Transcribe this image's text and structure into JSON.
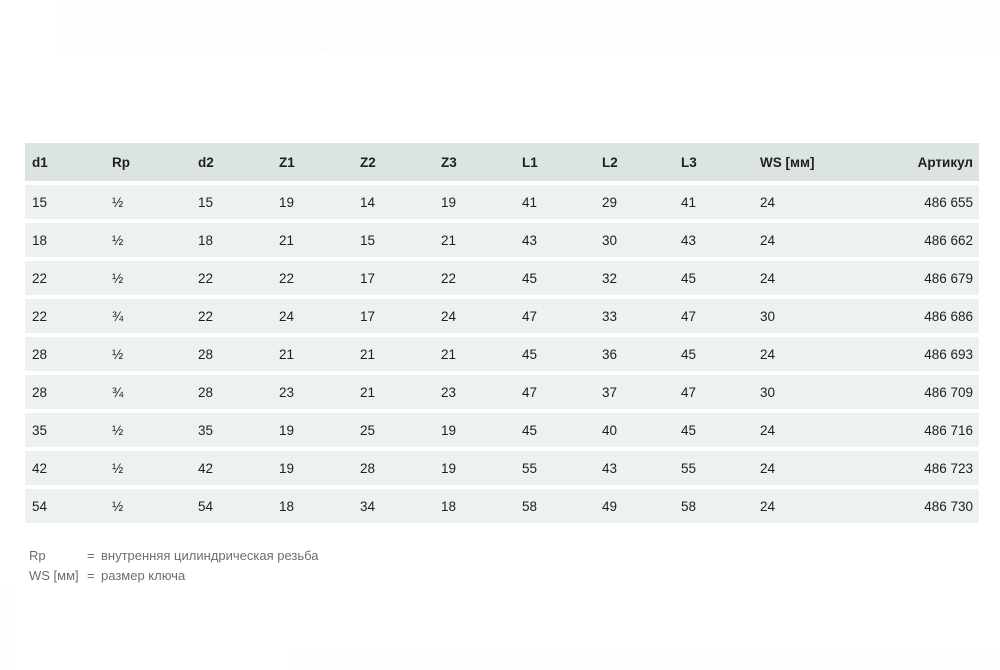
{
  "colors": {
    "page_bg": "#ffffff",
    "header_bg": "#dce4e2",
    "row_bg": "#edf1f0",
    "row_gap": "#ffffff",
    "table_text": "#1f1f1f",
    "footnote_text": "#6e6e6e"
  },
  "table": {
    "columns": [
      "d1",
      "Rp",
      "d2",
      "Z1",
      "Z2",
      "Z3",
      "L1",
      "L2",
      "L3",
      "WS [мм]",
      "Артикул"
    ],
    "rows": [
      [
        "15",
        "½",
        "15",
        "19",
        "14",
        "19",
        "41",
        "29",
        "41",
        "24",
        "486 655"
      ],
      [
        "18",
        "½",
        "18",
        "21",
        "15",
        "21",
        "43",
        "30",
        "43",
        "24",
        "486 662"
      ],
      [
        "22",
        "½",
        "22",
        "22",
        "17",
        "22",
        "45",
        "32",
        "45",
        "24",
        "486 679"
      ],
      [
        "22",
        "¾",
        "22",
        "24",
        "17",
        "24",
        "47",
        "33",
        "47",
        "30",
        "486 686"
      ],
      [
        "28",
        "½",
        "28",
        "21",
        "21",
        "21",
        "45",
        "36",
        "45",
        "24",
        "486 693"
      ],
      [
        "28",
        "¾",
        "28",
        "23",
        "21",
        "23",
        "47",
        "37",
        "47",
        "30",
        "486 709"
      ],
      [
        "35",
        "½",
        "35",
        "19",
        "25",
        "19",
        "45",
        "40",
        "45",
        "24",
        "486 716"
      ],
      [
        "42",
        "½",
        "42",
        "19",
        "28",
        "19",
        "55",
        "43",
        "55",
        "24",
        "486 723"
      ],
      [
        "54",
        "½",
        "54",
        "18",
        "34",
        "18",
        "58",
        "49",
        "58",
        "24",
        "486 730"
      ]
    ]
  },
  "footnotes": [
    {
      "term": "Rp",
      "eq": "=",
      "definition": "внутренняя цилиндрическая резьба"
    },
    {
      "term": "WS [мм]",
      "eq": "=",
      "definition": "размер ключа"
    }
  ]
}
